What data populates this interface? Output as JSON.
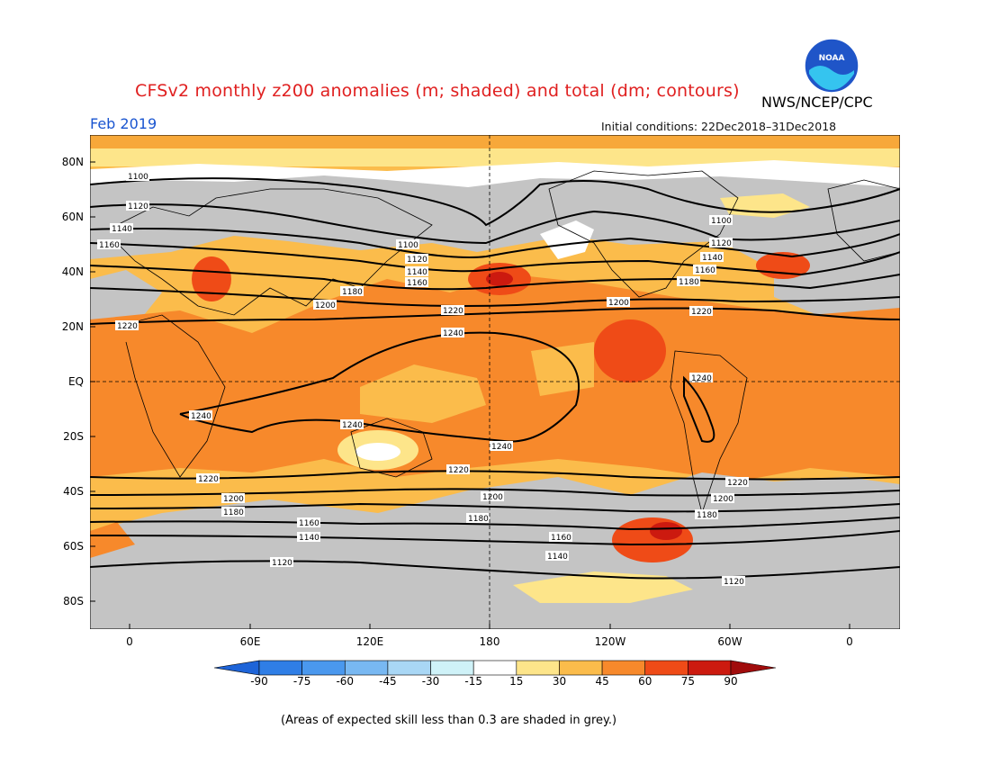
{
  "title": "CFSv2 monthly z200 anomalies (m; shaded) and total (dm; contours)",
  "org": "NWS/NCEP/CPC",
  "logo_text": "NOAA",
  "month": "Feb 2019",
  "initial_conditions": "Initial conditions: 22Dec2018–31Dec2018",
  "lat_labels": [
    "80N",
    "60N",
    "40N",
    "20N",
    "EQ",
    "20S",
    "40S",
    "60S",
    "80S"
  ],
  "lon_labels": [
    "0",
    "60E",
    "120E",
    "180",
    "120W",
    "60W",
    "0"
  ],
  "colorbar": {
    "labels": [
      "-90",
      "-75",
      "-60",
      "-45",
      "-30",
      "-15",
      "15",
      "30",
      "45",
      "60",
      "75",
      "90"
    ],
    "colors": [
      "#1e64d8",
      "#2f7ee6",
      "#4a98ee",
      "#78b8f2",
      "#a9d7f5",
      "#cff2f8",
      "#ffffff",
      "#fde58a",
      "#fbbc4b",
      "#f7892b",
      "#ef4b17",
      "#cc1a0f",
      "#a00c0c"
    ]
  },
  "contour_labels": [
    "1100",
    "1120",
    "1140",
    "1160",
    "1180",
    "1200",
    "1220",
    "1240"
  ],
  "footnote": "(Areas of expected skill less than 0.3 are shaded in grey.)"
}
